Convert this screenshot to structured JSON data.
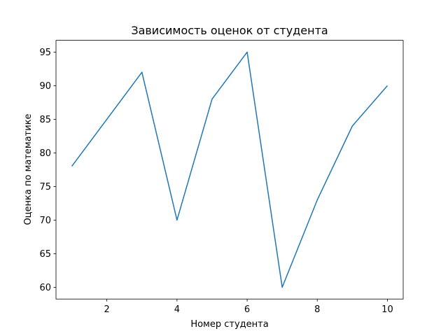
{
  "chart_data": {
    "type": "line",
    "title": "Зависимость оценок от студента",
    "x_label": "Номер студента",
    "y_label": "Оценка по математике",
    "x": [
      1,
      2,
      3,
      4,
      5,
      6,
      7,
      8,
      9,
      10
    ],
    "series": [
      {
        "color": "#1f77b4",
        "values": [
          78,
          85,
          92,
          70,
          88,
          95,
          60,
          73,
          84,
          90
        ]
      }
    ],
    "xlim": [
      0.55,
      10.45
    ],
    "xticks": [
      2,
      4,
      6,
      8,
      10
    ],
    "ylim": [
      58.25,
      96.75
    ],
    "yticks": [
      60,
      65,
      70,
      75,
      80,
      85,
      90,
      95
    ],
    "grid": false
  }
}
